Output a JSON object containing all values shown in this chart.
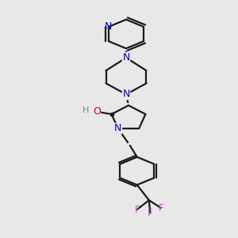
{
  "bg_color": "#e8e8e8",
  "bond_color": "#1a1a1a",
  "n_color": "#0000cc",
  "o_color": "#cc0000",
  "f_color": "#cc44cc",
  "h_color": "#888888",
  "lw": 1.6,
  "xlim": [
    0,
    10
  ],
  "ylim": [
    0,
    14
  ]
}
